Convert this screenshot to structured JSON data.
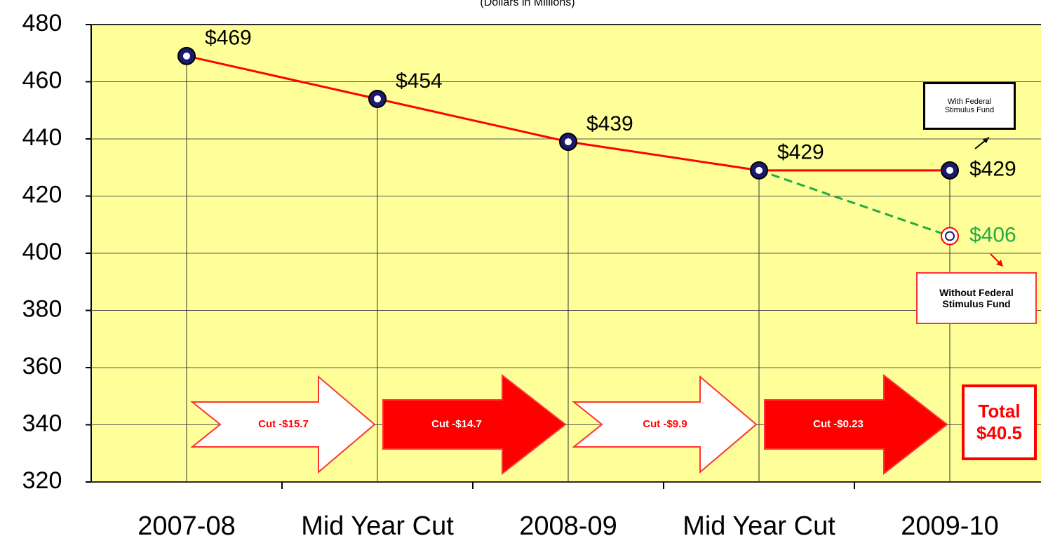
{
  "chart_data": {
    "type": "line",
    "subtitle": "(Dollars in Millions)",
    "categories": [
      "2007-08",
      "Mid Year Cut",
      "2008-09",
      "Mid Year Cut",
      "2009-10"
    ],
    "series": [
      {
        "name": "With Federal Stimulus Fund",
        "color": "#ff0000",
        "dashed": false,
        "values": [
          469,
          454,
          439,
          429,
          429
        ],
        "value_labels": [
          "$469",
          "$454",
          "$439",
          "$429",
          "$429"
        ],
        "label_color": "#000000"
      },
      {
        "name": "Without Federal Stimulus Fund",
        "color": "#22aa44",
        "dashed": true,
        "values": [
          null,
          null,
          null,
          429,
          406
        ],
        "value_labels": [
          null,
          null,
          null,
          null,
          "$406"
        ],
        "label_color": "#22aa44"
      }
    ],
    "ylim": [
      320,
      480
    ],
    "yticks": [
      320,
      340,
      360,
      380,
      400,
      420,
      440,
      460,
      480
    ],
    "grid": true,
    "cuts": [
      "Cut -$15.7",
      "Cut -$14.7",
      "Cut -$9.9",
      "Cut -$0.23"
    ],
    "total": [
      "Total",
      "$40.5"
    ]
  }
}
